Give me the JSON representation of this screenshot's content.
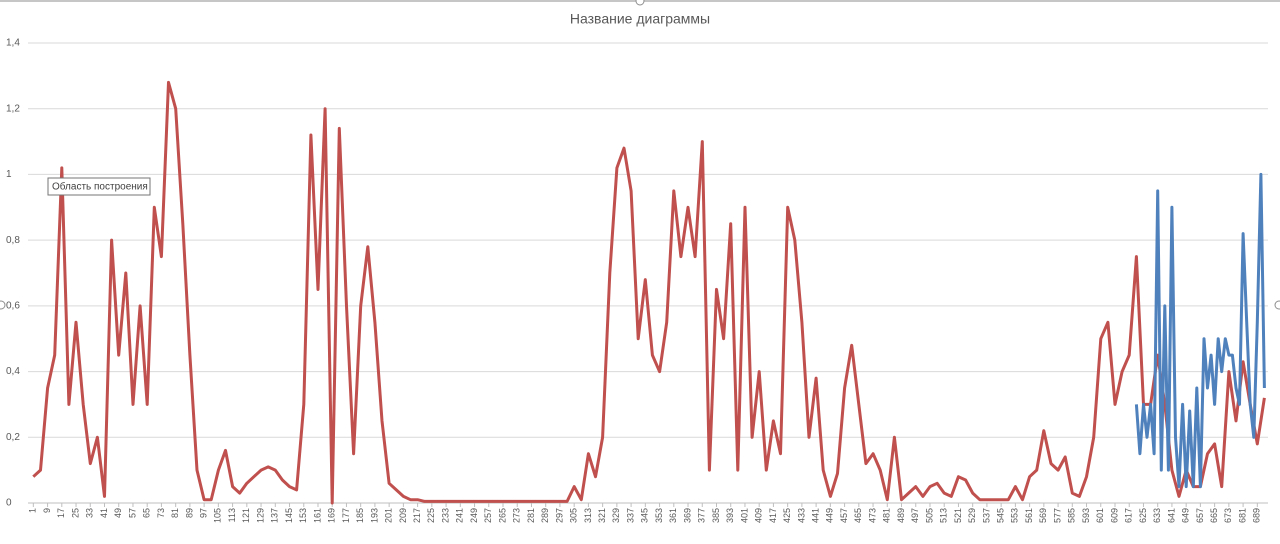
{
  "chart_data": {
    "type": "line",
    "title": "Название диаграммы",
    "annotation": "Область построения",
    "xlim": [
      -2,
      695
    ],
    "xticks": [
      1,
      9,
      17,
      25,
      33,
      41,
      49,
      57,
      65,
      73,
      81,
      89,
      97,
      105,
      113,
      121,
      129,
      137,
      145,
      153,
      161,
      169,
      177,
      185,
      193,
      201,
      209,
      217,
      225,
      233,
      241,
      249,
      257,
      265,
      273,
      281,
      289,
      297,
      305,
      313,
      321,
      329,
      337,
      345,
      353,
      361,
      369,
      377,
      385,
      393,
      401,
      409,
      417,
      425,
      433,
      441,
      449,
      457,
      465,
      473,
      481,
      489,
      497,
      505,
      513,
      521,
      529,
      537,
      545,
      553,
      561,
      569,
      577,
      585,
      593,
      601,
      609,
      617,
      625,
      633,
      641,
      649,
      657,
      665,
      673,
      681,
      689
    ],
    "ylim": [
      0,
      1.4
    ],
    "yticks": [
      0,
      {
        "value": 0.2,
        "label": "0,2"
      },
      {
        "value": 0.4,
        "label": "0,4"
      },
      {
        "value": 0.6,
        "label": "0,6"
      },
      {
        "value": 0.8,
        "label": "0,8"
      },
      1,
      {
        "value": 1.2,
        "label": "1,2"
      },
      {
        "value": 1.4,
        "label": "1,4"
      }
    ],
    "grid": true,
    "series": [
      {
        "color": "#c0504d",
        "x": [
          1,
          5,
          9,
          13,
          17,
          21,
          25,
          29,
          33,
          37,
          41,
          45,
          49,
          53,
          57,
          61,
          65,
          69,
          73,
          77,
          81,
          85,
          89,
          93,
          97,
          101,
          105,
          109,
          113,
          117,
          121,
          125,
          129,
          133,
          137,
          141,
          145,
          149,
          153,
          157,
          161,
          165,
          169,
          173,
          177,
          181,
          185,
          189,
          193,
          197,
          201,
          205,
          209,
          213,
          217,
          221,
          225,
          229,
          233,
          237,
          241,
          245,
          249,
          253,
          257,
          261,
          265,
          269,
          273,
          277,
          281,
          285,
          289,
          293,
          297,
          301,
          305,
          309,
          313,
          317,
          321,
          325,
          329,
          333,
          337,
          341,
          345,
          349,
          353,
          357,
          361,
          365,
          369,
          373,
          377,
          381,
          385,
          389,
          393,
          397,
          401,
          405,
          409,
          413,
          417,
          421,
          425,
          429,
          433,
          437,
          441,
          445,
          449,
          453,
          457,
          461,
          465,
          469,
          473,
          477,
          481,
          485,
          489,
          493,
          497,
          501,
          505,
          509,
          513,
          517,
          521,
          525,
          529,
          533,
          537,
          541,
          545,
          549,
          553,
          557,
          561,
          565,
          569,
          573,
          577,
          581,
          585,
          589,
          593,
          597,
          601,
          605,
          609,
          613,
          617,
          621,
          625,
          629,
          633,
          637,
          641,
          645,
          649,
          653,
          657,
          661,
          665,
          669,
          673,
          677,
          681,
          685,
          689,
          693
        ],
        "values": [
          0.08,
          0.1,
          0.35,
          0.45,
          1.02,
          0.3,
          0.55,
          0.3,
          0.12,
          0.2,
          0.02,
          0.8,
          0.45,
          0.7,
          0.3,
          0.6,
          0.3,
          0.9,
          0.75,
          1.28,
          1.2,
          0.85,
          0.45,
          0.1,
          0.01,
          0.01,
          0.1,
          0.16,
          0.05,
          0.03,
          0.06,
          0.08,
          0.1,
          0.11,
          0.1,
          0.07,
          0.05,
          0.04,
          0.3,
          1.12,
          0.65,
          1.2,
          0,
          1.14,
          0.6,
          0.15,
          0.6,
          0.78,
          0.55,
          0.25,
          0.06,
          0.04,
          0.02,
          0.01,
          0.01,
          0.005,
          0.005,
          0.005,
          0.005,
          0.005,
          0.005,
          0.005,
          0.005,
          0.005,
          0.005,
          0.005,
          0.005,
          0.005,
          0.005,
          0.005,
          0.005,
          0.005,
          0.005,
          0.005,
          0.005,
          0.005,
          0.05,
          0.01,
          0.15,
          0.08,
          0.2,
          0.7,
          1.02,
          1.08,
          0.95,
          0.5,
          0.68,
          0.45,
          0.4,
          0.55,
          0.95,
          0.75,
          0.9,
          0.75,
          1.1,
          0.1,
          0.65,
          0.5,
          0.85,
          0.1,
          0.9,
          0.2,
          0.4,
          0.1,
          0.25,
          0.15,
          0.9,
          0.8,
          0.55,
          0.2,
          0.38,
          0.1,
          0.02,
          0.09,
          0.35,
          0.48,
          0.3,
          0.12,
          0.15,
          0.1,
          0.01,
          0.2,
          0.01,
          0.03,
          0.05,
          0.02,
          0.05,
          0.06,
          0.03,
          0.02,
          0.08,
          0.07,
          0.03,
          0.01,
          0.01,
          0.01,
          0.01,
          0.01,
          0.05,
          0.01,
          0.08,
          0.1,
          0.22,
          0.12,
          0.1,
          0.14,
          0.03,
          0.02,
          0.08,
          0.2,
          0.5,
          0.55,
          0.3,
          0.4,
          0.45,
          0.75,
          0.3,
          0.3,
          0.45,
          0.3,
          0.1,
          0.02,
          0.1,
          0.05,
          0.05,
          0.15,
          0.18,
          0.05,
          0.4,
          0.25,
          0.43,
          0.3,
          0.18,
          0.32
        ]
      },
      {
        "color": "#4f81bd",
        "x": [
          621,
          623,
          625,
          627,
          629,
          631,
          633,
          635,
          637,
          639,
          641,
          643,
          645,
          647,
          649,
          651,
          653,
          655,
          657,
          659,
          661,
          663,
          665,
          667,
          669,
          671,
          673,
          675,
          677,
          679,
          681,
          683,
          685,
          687,
          689,
          691,
          693
        ],
        "values": [
          0.3,
          0.15,
          0.3,
          0.2,
          0.3,
          0.15,
          0.95,
          0.1,
          0.6,
          0.1,
          0.9,
          0.2,
          0.05,
          0.3,
          0.05,
          0.28,
          0.05,
          0.35,
          0.05,
          0.5,
          0.35,
          0.45,
          0.3,
          0.5,
          0.4,
          0.5,
          0.45,
          0.45,
          0.35,
          0.3,
          0.82,
          0.55,
          0.3,
          0.2,
          0.55,
          1.0,
          0.35
        ]
      }
    ]
  }
}
